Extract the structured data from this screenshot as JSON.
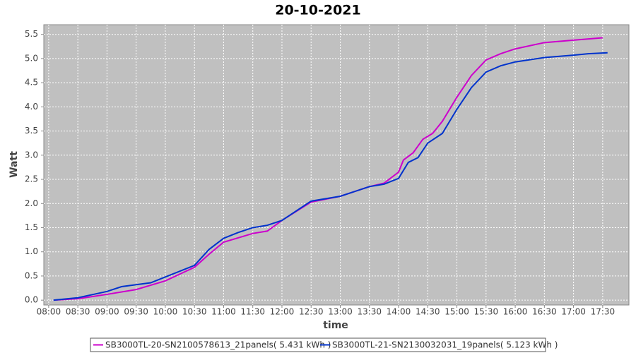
{
  "chart_data": {
    "type": "line",
    "title": "20-10-2021",
    "x_label": "time",
    "y_label": "Watt",
    "xlim": [
      "07:55",
      "17:57"
    ],
    "ylim": [
      -0.1,
      5.7
    ],
    "xticks": [
      "08:00",
      "08:30",
      "09:00",
      "09:30",
      "10:00",
      "10:30",
      "11:00",
      "11:30",
      "12:00",
      "12:30",
      "13:00",
      "13:30",
      "14:00",
      "14:30",
      "15:00",
      "15:30",
      "16:00",
      "16:30",
      "17:00",
      "17:30"
    ],
    "yticks": [
      {
        "value": 0,
        "label": "0.0"
      },
      0.5,
      {
        "value": 1,
        "label": "1.0"
      },
      1.5,
      {
        "value": 2,
        "label": "2.0"
      },
      2.5,
      {
        "value": 3,
        "label": "3.0"
      },
      3.5,
      {
        "value": 4,
        "label": "4.0"
      },
      4.5,
      {
        "value": 5,
        "label": "5.0"
      },
      5.5
    ],
    "grid": true,
    "series": [
      {
        "name": "SB3000TL-20-SN2100578613_21panels( 5.431 kWh )",
        "color": "#cc00cc",
        "x": [
          "08:05",
          "08:30",
          "09:00",
          "09:30",
          "10:00",
          "10:30",
          "10:45",
          "11:00",
          "11:30",
          "11:45",
          "12:00",
          "12:30",
          "13:00",
          "13:30",
          "13:45",
          "14:00",
          "14:05",
          "14:15",
          "14:25",
          "14:35",
          "14:45",
          "15:00",
          "15:15",
          "15:30",
          "15:45",
          "16:00",
          "16:30",
          "17:00",
          "17:30"
        ],
        "values": [
          0,
          0.03,
          0.12,
          0.22,
          0.4,
          0.68,
          0.95,
          1.2,
          1.38,
          1.43,
          1.65,
          2.03,
          2.15,
          2.35,
          2.42,
          2.65,
          2.9,
          3.05,
          3.33,
          3.45,
          3.7,
          4.2,
          4.65,
          4.97,
          5.1,
          5.2,
          5.33,
          5.38,
          5.43
        ]
      },
      {
        "name": "SB3000TL-21-SN2130032031_19panels( 5.123 kWh )",
        "color": "#0033cc",
        "x": [
          "08:05",
          "08:30",
          "09:00",
          "09:15",
          "09:30",
          "09:45",
          "10:00",
          "10:30",
          "10:45",
          "11:00",
          "11:15",
          "11:30",
          "11:45",
          "12:00",
          "12:30",
          "13:00",
          "13:30",
          "13:45",
          "14:00",
          "14:10",
          "14:20",
          "14:30",
          "14:45",
          "15:00",
          "15:15",
          "15:30",
          "15:45",
          "16:00",
          "16:30",
          "17:00",
          "17:15",
          "17:35"
        ],
        "values": [
          0,
          0.05,
          0.18,
          0.28,
          0.32,
          0.36,
          0.48,
          0.72,
          1.05,
          1.28,
          1.4,
          1.5,
          1.55,
          1.65,
          2.05,
          2.15,
          2.35,
          2.4,
          2.52,
          2.85,
          2.95,
          3.25,
          3.45,
          3.95,
          4.4,
          4.72,
          4.85,
          4.93,
          5.02,
          5.07,
          5.1,
          5.12
        ]
      }
    ]
  }
}
